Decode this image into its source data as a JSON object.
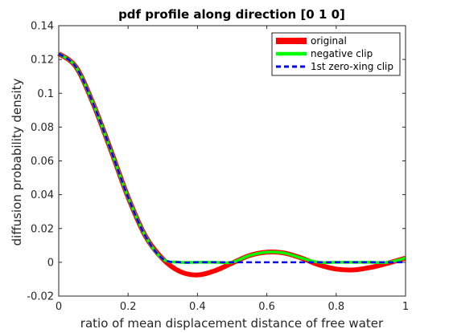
{
  "chart_data": {
    "type": "line",
    "title": "pdf profile along direction [0 1 0]",
    "xlabel": "ratio of mean displacement distance of free water",
    "ylabel": "diffusion probability density",
    "xlim": [
      0,
      1
    ],
    "ylim": [
      -0.02,
      0.14
    ],
    "xticks": [
      0,
      0.2,
      0.4,
      0.6,
      0.8,
      1
    ],
    "yticks": [
      -0.02,
      0,
      0.02,
      0.04,
      0.06,
      0.08,
      0.1,
      0.12,
      0.14
    ],
    "xtick_labels": [
      "0",
      "0.2",
      "0.4",
      "0.6",
      "0.8",
      "1"
    ],
    "ytick_labels": [
      "-0.02",
      "0",
      "0.02",
      "0.04",
      "0.06",
      "0.08",
      "0.1",
      "0.12",
      "0.14"
    ],
    "grid": false,
    "legend_position": "top-right",
    "x": [
      0,
      0.05,
      0.1,
      0.15,
      0.2,
      0.25,
      0.3,
      0.35,
      0.4,
      0.45,
      0.5,
      0.55,
      0.6,
      0.65,
      0.7,
      0.75,
      0.8,
      0.85,
      0.9,
      0.95,
      1.0
    ],
    "series": [
      {
        "name": "original",
        "color": "#ff0000",
        "style": "solid-thick",
        "values": [
          0.1235,
          0.1155,
          0.0935,
          0.0665,
          0.0385,
          0.0155,
          0.002,
          -0.0055,
          -0.0075,
          -0.005,
          -0.0005,
          0.004,
          0.006,
          0.0055,
          0.0025,
          -0.0015,
          -0.004,
          -0.0045,
          -0.003,
          -0.0005,
          0.0025
        ]
      },
      {
        "name": "negative clip",
        "color": "#00ff00",
        "style": "solid",
        "values": [
          0.1235,
          0.1155,
          0.0935,
          0.0665,
          0.0385,
          0.0155,
          0.002,
          0,
          0,
          0,
          0,
          0.004,
          0.006,
          0.0055,
          0.0025,
          0,
          0,
          0,
          0,
          0,
          0.0025
        ]
      },
      {
        "name": "1st zero-xing clip",
        "color": "#0000ff",
        "style": "dashed",
        "values": [
          0.1235,
          0.1155,
          0.0935,
          0.0665,
          0.0385,
          0.0155,
          0.002,
          0,
          0,
          0,
          0,
          0,
          0,
          0,
          0,
          0,
          0,
          0,
          0,
          0,
          0
        ]
      }
    ]
  }
}
